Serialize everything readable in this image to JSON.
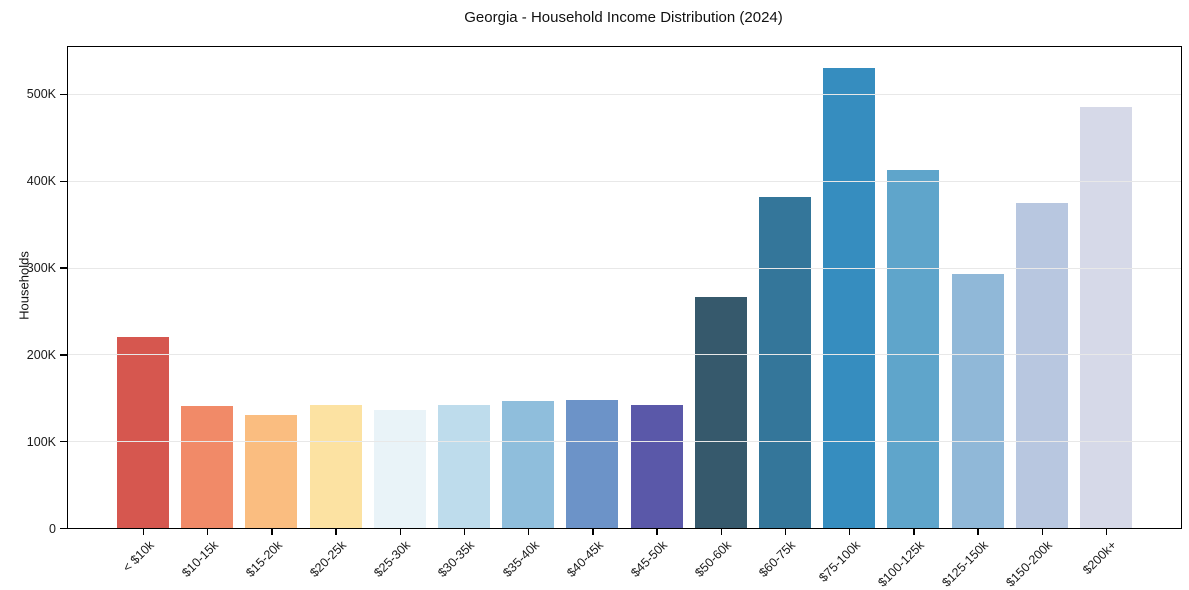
{
  "chart_data": {
    "type": "bar",
    "title": "Georgia - Household Income Distribution (2024)",
    "xlabel": "",
    "ylabel": "Households",
    "categories": [
      "< $10k",
      "$10-15k",
      "$15-20k",
      "$20-25k",
      "$25-30k",
      "$30-35k",
      "$35-40k",
      "$40-45k",
      "$45-50k",
      "$50-60k",
      "$60-75k",
      "$75-100k",
      "$100-125k",
      "$125-150k",
      "$150-200k",
      "$200k+"
    ],
    "values": [
      220000,
      140000,
      130000,
      142000,
      136000,
      142000,
      146000,
      147000,
      142000,
      266000,
      381000,
      530000,
      412000,
      293000,
      374000,
      485000
    ],
    "bar_colors": [
      "#d6574f",
      "#f18a68",
      "#fabd80",
      "#fce2a2",
      "#e9f3f8",
      "#bedcec",
      "#8fbedc",
      "#6c93c8",
      "#5a58a9",
      "#36596c",
      "#34769a",
      "#368dbf",
      "#5fa5cb",
      "#90b8d8",
      "#b8c7e0",
      "#d6d9e8"
    ],
    "ytick_labels": [
      "0",
      "100K",
      "200K",
      "300K",
      "400K",
      "500K"
    ],
    "ytick_values": [
      0,
      100000,
      200000,
      300000,
      400000,
      500000
    ],
    "ylim": [
      0,
      554000
    ],
    "grid": "horizontal-light-above-bars",
    "legend": "none",
    "background": "#ffffff",
    "spine_color": "#000000"
  }
}
